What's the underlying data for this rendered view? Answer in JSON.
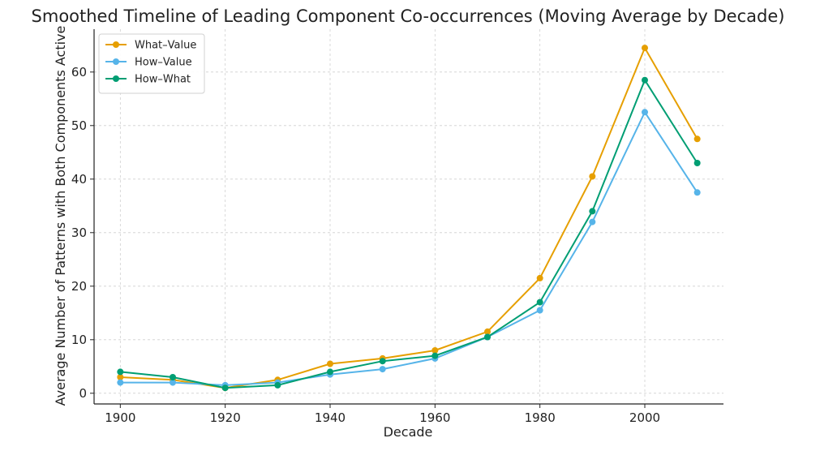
{
  "chart_data": {
    "type": "line",
    "title": "Smoothed Timeline of Leading Component Co-occurrences (Moving Average by Decade)",
    "xlabel": "Decade",
    "ylabel": "Average Number of Patterns with Both Components Active",
    "x": [
      1900,
      1910,
      1920,
      1930,
      1940,
      1950,
      1960,
      1970,
      1980,
      1990,
      2000,
      2010
    ],
    "xlim": [
      1895,
      2015
    ],
    "ylim": [
      -2,
      68
    ],
    "xticks": [
      1900,
      1920,
      1940,
      1960,
      1980,
      2000
    ],
    "yticks": [
      0,
      10,
      20,
      30,
      40,
      50,
      60
    ],
    "grid": true,
    "legend_position": "upper-left",
    "series": [
      {
        "name": "What–Value",
        "color": "#E69F00",
        "values": [
          3,
          2.5,
          1,
          2.5,
          5.5,
          6.5,
          8,
          11.5,
          21.5,
          40.5,
          64.5,
          47.5
        ]
      },
      {
        "name": "How–Value",
        "color": "#56B4E9",
        "values": [
          2,
          2,
          1.5,
          2,
          3.5,
          4.5,
          6.5,
          10.5,
          15.5,
          32,
          52.5,
          37.5
        ]
      },
      {
        "name": "How–What",
        "color": "#009E73",
        "values": [
          4,
          3,
          1,
          1.5,
          4,
          6,
          7,
          10.5,
          17,
          34,
          58.5,
          43
        ]
      }
    ]
  }
}
